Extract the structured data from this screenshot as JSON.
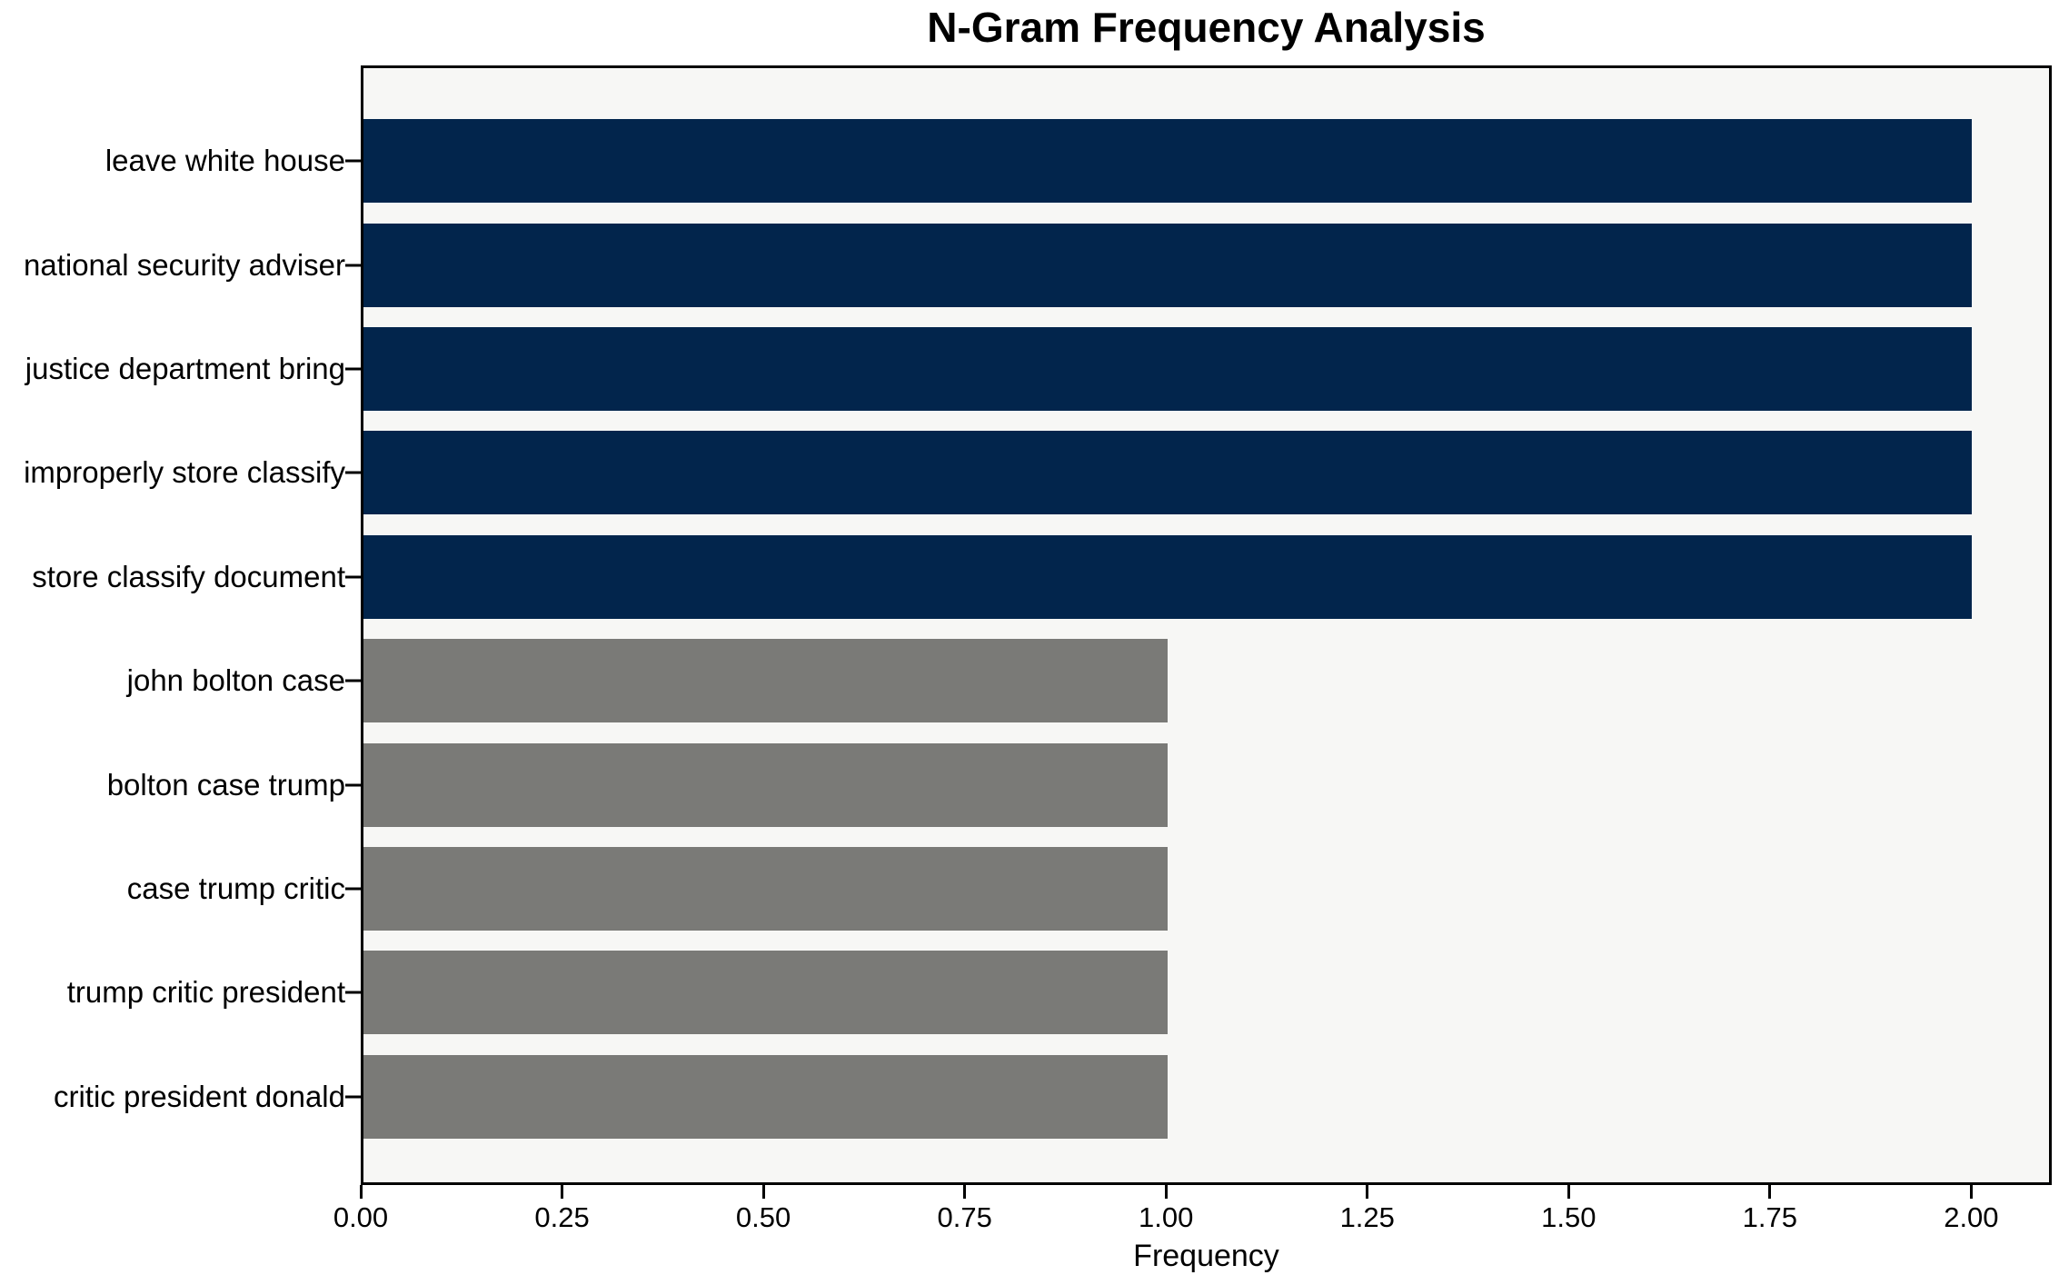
{
  "chart_data": {
    "type": "bar",
    "orientation": "horizontal",
    "title": "N-Gram Frequency Analysis",
    "xlabel": "Frequency",
    "ylabel": "",
    "categories": [
      "leave white house",
      "national security adviser",
      "justice department bring",
      "improperly store classify",
      "store classify document",
      "john bolton case",
      "bolton case trump",
      "case trump critic",
      "trump critic president",
      "critic president donald"
    ],
    "values": [
      2,
      2,
      2,
      2,
      2,
      1,
      1,
      1,
      1,
      1
    ],
    "bar_colors": [
      "#02254c",
      "#02254c",
      "#02254c",
      "#02254c",
      "#02254c",
      "#7a7a77",
      "#7a7a77",
      "#7a7a77",
      "#7a7a77",
      "#7a7a77"
    ],
    "xlim": [
      0,
      2.1
    ],
    "xticks": [
      {
        "value": 0.0,
        "label": "0.00"
      },
      {
        "value": 0.25,
        "label": "0.25"
      },
      {
        "value": 0.5,
        "label": "0.50"
      },
      {
        "value": 0.75,
        "label": "0.75"
      },
      {
        "value": 1.0,
        "label": "1.00"
      },
      {
        "value": 1.25,
        "label": "1.25"
      },
      {
        "value": 1.5,
        "label": "1.50"
      },
      {
        "value": 1.75,
        "label": "1.75"
      },
      {
        "value": 2.0,
        "label": "2.00"
      }
    ],
    "legend": null,
    "grid": false,
    "colors": {
      "highlight_bar": "#02254c",
      "normal_bar": "#7a7a77",
      "plot_background": "#f7f7f5",
      "figure_background": "#ffffff",
      "spine": "#000000",
      "text": "#000000"
    }
  }
}
